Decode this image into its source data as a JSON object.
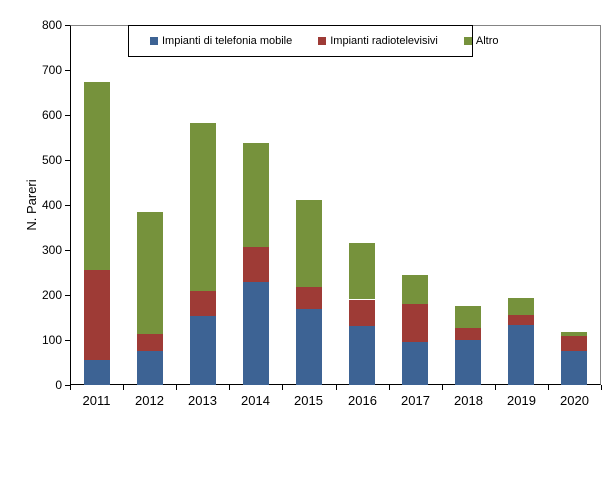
{
  "chart_data": {
    "type": "bar",
    "stacked": true,
    "title": "",
    "xlabel": "",
    "ylabel": "N. Pareri",
    "ylim": [
      0,
      800
    ],
    "ytick_step": 100,
    "grid": true,
    "legend_position": "top",
    "categories": [
      "2011",
      "2012",
      "2013",
      "2014",
      "2015",
      "2016",
      "2017",
      "2018",
      "2019",
      "2020"
    ],
    "series": [
      {
        "name": "Impianti di telefonia mobile",
        "color": "#3D6394",
        "values": [
          55,
          75,
          155,
          228,
          169,
          133,
          95,
          99,
          134,
          77
        ]
      },
      {
        "name": "Impianti radiotelevisivi",
        "color": "#9E3B36",
        "values": [
          202,
          38,
          55,
          78,
          50,
          57,
          85,
          27,
          22,
          33
        ]
      },
      {
        "name": "Altro",
        "color": "#76923C",
        "values": [
          417,
          272,
          373,
          231,
          193,
          125,
          65,
          49,
          37,
          8
        ]
      }
    ],
    "totals": [
      674,
      385,
      583,
      537,
      412,
      315,
      245,
      175,
      193,
      118
    ]
  }
}
